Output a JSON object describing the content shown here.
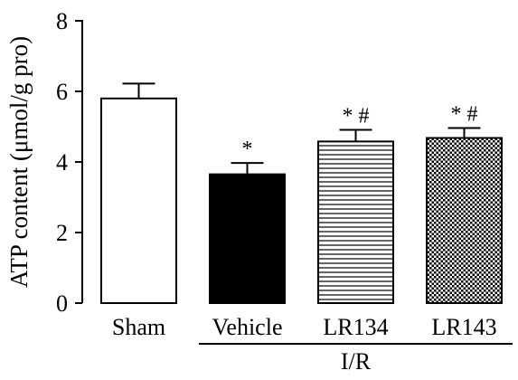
{
  "chart_data": {
    "type": "bar",
    "title": "",
    "xlabel": "",
    "ylabel": "ATP content (μmol/g pro)",
    "categories": [
      "Sham",
      "Vehicle",
      "LR134",
      "LR143"
    ],
    "values": [
      5.8,
      3.65,
      4.58,
      4.68
    ],
    "errors": [
      0.42,
      0.32,
      0.33,
      0.28
    ],
    "annotations": [
      "",
      "*",
      "* #",
      "* #"
    ],
    "fills": [
      "white",
      "black",
      "horizontal-lines",
      "dotted-lattice"
    ],
    "ylim": [
      0,
      8
    ],
    "yticks": [
      0,
      2,
      4,
      6,
      8
    ],
    "group_bracket": {
      "label": "I/R",
      "categories": [
        "Vehicle",
        "LR134",
        "LR143"
      ]
    },
    "grid": false,
    "legend": "none"
  }
}
